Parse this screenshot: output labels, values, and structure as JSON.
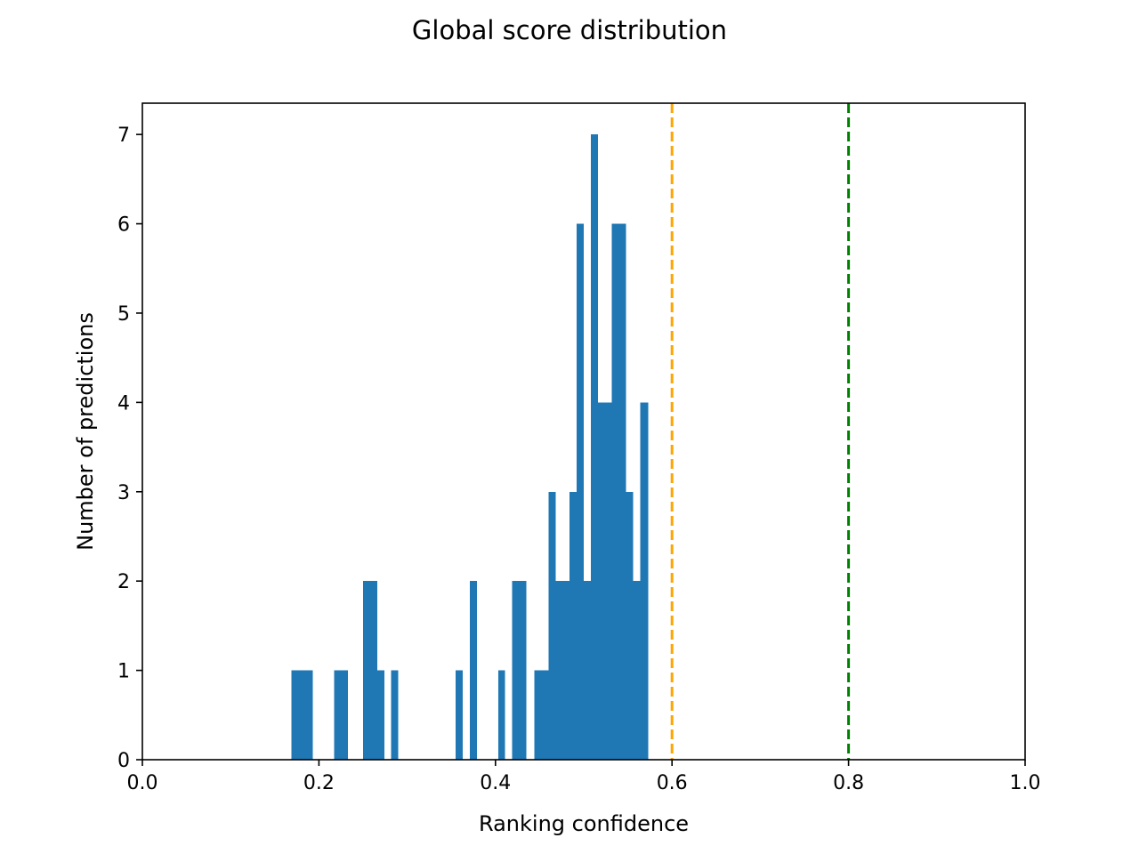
{
  "chart_data": {
    "type": "bar",
    "title": "Global score distribution",
    "xlabel": "Ranking confidence",
    "ylabel": "Number of predictions",
    "xlim": [
      0.0,
      1.0
    ],
    "ylim": [
      0,
      7.35
    ],
    "x_ticks": [
      "0.0",
      "0.2",
      "0.4",
      "0.6",
      "0.8",
      "1.0"
    ],
    "y_ticks": [
      "0",
      "1",
      "2",
      "3",
      "4",
      "5",
      "6",
      "7"
    ],
    "x_tick_values": [
      0.0,
      0.2,
      0.4,
      0.6,
      0.8,
      1.0
    ],
    "y_tick_values": [
      0,
      1,
      2,
      3,
      4,
      5,
      6,
      7
    ],
    "grid": false,
    "bar_color": "#1f77b4",
    "bins": [
      {
        "x0": 0.169,
        "x1": 0.177,
        "count": 1
      },
      {
        "x0": 0.177,
        "x1": 0.185,
        "count": 1
      },
      {
        "x0": 0.185,
        "x1": 0.193,
        "count": 1
      },
      {
        "x0": 0.217,
        "x1": 0.225,
        "count": 1
      },
      {
        "x0": 0.225,
        "x1": 0.233,
        "count": 1
      },
      {
        "x0": 0.25,
        "x1": 0.258,
        "count": 2
      },
      {
        "x0": 0.258,
        "x1": 0.266,
        "count": 2
      },
      {
        "x0": 0.266,
        "x1": 0.274,
        "count": 1
      },
      {
        "x0": 0.282,
        "x1": 0.29,
        "count": 1
      },
      {
        "x0": 0.355,
        "x1": 0.363,
        "count": 1
      },
      {
        "x0": 0.371,
        "x1": 0.379,
        "count": 2
      },
      {
        "x0": 0.403,
        "x1": 0.411,
        "count": 1
      },
      {
        "x0": 0.419,
        "x1": 0.427,
        "count": 2
      },
      {
        "x0": 0.427,
        "x1": 0.435,
        "count": 2
      },
      {
        "x0": 0.444,
        "x1": 0.452,
        "count": 1
      },
      {
        "x0": 0.452,
        "x1": 0.46,
        "count": 1
      },
      {
        "x0": 0.46,
        "x1": 0.468,
        "count": 3
      },
      {
        "x0": 0.468,
        "x1": 0.476,
        "count": 2
      },
      {
        "x0": 0.476,
        "x1": 0.484,
        "count": 2
      },
      {
        "x0": 0.484,
        "x1": 0.492,
        "count": 3
      },
      {
        "x0": 0.492,
        "x1": 0.5,
        "count": 6
      },
      {
        "x0": 0.5,
        "x1": 0.508,
        "count": 2
      },
      {
        "x0": 0.508,
        "x1": 0.516,
        "count": 7
      },
      {
        "x0": 0.516,
        "x1": 0.524,
        "count": 4
      },
      {
        "x0": 0.524,
        "x1": 0.532,
        "count": 4
      },
      {
        "x0": 0.532,
        "x1": 0.54,
        "count": 6
      },
      {
        "x0": 0.54,
        "x1": 0.548,
        "count": 6
      },
      {
        "x0": 0.548,
        "x1": 0.556,
        "count": 3
      },
      {
        "x0": 0.556,
        "x1": 0.564,
        "count": 2
      },
      {
        "x0": 0.564,
        "x1": 0.573,
        "count": 4
      }
    ],
    "reference_lines": [
      {
        "x": 0.6,
        "color": "#ffa500",
        "style": "dashed"
      },
      {
        "x": 0.8,
        "color": "#008000",
        "style": "dashed"
      }
    ]
  }
}
